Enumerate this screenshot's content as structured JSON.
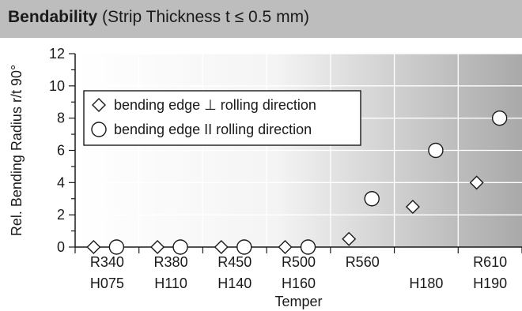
{
  "title": {
    "bold": "Bendability",
    "normal": " (Strip Thickness t ≤ 0.5 mm)"
  },
  "chart_data": {
    "type": "scatter",
    "title": "Bendability (Strip Thickness t ≤ 0.5 mm)",
    "xlabel": "Temper",
    "ylabel": "Rel. Bending Radius r/t 90°",
    "ylim": [
      0,
      12
    ],
    "yticks": [
      0,
      2,
      4,
      6,
      8,
      10,
      12
    ],
    "grid": true,
    "legend_position": "top-left",
    "categories": [
      {
        "line1": "R340",
        "line2": "H075"
      },
      {
        "line1": "R380",
        "line2": "H110"
      },
      {
        "line1": "R450",
        "line2": "H140"
      },
      {
        "line1": "R500",
        "line2": "H160"
      },
      {
        "line1": "R560",
        "line2": ""
      },
      {
        "line1": "",
        "line2": "H180"
      },
      {
        "line1": "R610",
        "line2": "H190"
      }
    ],
    "series": [
      {
        "name": "bending edge ⊥  rolling direction",
        "marker": "diamond",
        "values": [
          0,
          0,
          0,
          0,
          0.5,
          2.5,
          4
        ]
      },
      {
        "name": "bending edge II  rolling direction",
        "marker": "circle",
        "values": [
          0,
          0,
          0,
          0,
          3,
          6,
          8
        ]
      }
    ]
  }
}
